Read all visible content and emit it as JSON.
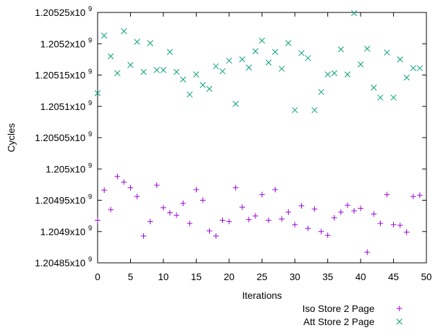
{
  "chart_data": {
    "type": "scatter",
    "title": "",
    "xlabel": "Iterations",
    "ylabel": "Cycles",
    "xlim": [
      0,
      50
    ],
    "ylim": [
      1204850000,
      1205250000
    ],
    "grid": false,
    "legend_position": "bottom-right",
    "x_ticks": [
      0,
      5,
      10,
      15,
      20,
      25,
      30,
      35,
      40,
      45,
      50
    ],
    "x_tick_labels": [
      "0",
      "5",
      "10",
      "15",
      "20",
      "25",
      "30",
      "35",
      "40",
      "45",
      "50"
    ],
    "y_ticks": [
      1204850000,
      1204900000,
      1204950000,
      1205000000,
      1205050000,
      1205100000,
      1205150000,
      1205200000,
      1205250000
    ],
    "y_tick_mantissas": [
      "1.20485x10",
      "1.2049x10",
      "1.20495x10",
      "1.205x10",
      "1.20505x10",
      "1.2051x10",
      "1.20515x10",
      "1.2052x10",
      "1.20525x10"
    ],
    "y_tick_exponent": "9",
    "series": [
      {
        "name": "Iso Store 2 Page",
        "marker": "plus",
        "color": "#9400d3",
        "x": [
          0,
          1,
          2,
          3,
          4,
          5,
          6,
          7,
          8,
          9,
          10,
          11,
          12,
          13,
          14,
          15,
          16,
          17,
          18,
          19,
          20,
          21,
          22,
          23,
          24,
          25,
          26,
          27,
          28,
          29,
          30,
          31,
          32,
          33,
          34,
          35,
          36,
          37,
          38,
          39,
          40,
          41,
          42,
          43,
          44,
          45,
          46,
          47,
          48,
          49
        ],
        "y": [
          1204918000,
          1204966000,
          1204935000,
          1204988000,
          1204979000,
          1204970000,
          1204956000,
          1204893000,
          1204916000,
          1204974000,
          1204938000,
          1204930000,
          1204926000,
          1204945000,
          1204913000,
          1204967000,
          1204950000,
          1204901000,
          1204893000,
          1204918000,
          1204916000,
          1204970000,
          1204939000,
          1204919000,
          1204925000,
          1204959000,
          1204918000,
          1204967000,
          1204920000,
          1204931000,
          1204911000,
          1204941000,
          1204905000,
          1204936000,
          1204900000,
          1204894000,
          1204922000,
          1204931000,
          1204942000,
          1204933000,
          1204937000,
          1204867000,
          1204928000,
          1204913000,
          1204959000,
          1204911000,
          1204910000,
          1204899000,
          1204956000,
          1204958000
        ]
      },
      {
        "name": "Att Store 2 Page",
        "marker": "cross",
        "color": "#009e73",
        "x": [
          0,
          1,
          2,
          3,
          4,
          5,
          6,
          7,
          8,
          9,
          10,
          11,
          12,
          13,
          14,
          15,
          16,
          17,
          18,
          19,
          20,
          21,
          22,
          23,
          24,
          25,
          26,
          27,
          28,
          29,
          30,
          31,
          32,
          33,
          34,
          35,
          36,
          37,
          38,
          39,
          40,
          41,
          42,
          43,
          44,
          45,
          46,
          47,
          48,
          49
        ],
        "y": [
          1205121000,
          1205213000,
          1205180000,
          1205153000,
          1205220000,
          1205166000,
          1205203000,
          1205155000,
          1205201000,
          1205158000,
          1205158000,
          1205187000,
          1205155000,
          1205143000,
          1205119000,
          1205151000,
          1205134000,
          1205128000,
          1205164000,
          1205156000,
          1205173000,
          1205104000,
          1205175000,
          1205162000,
          1205188000,
          1205205000,
          1205170000,
          1205187000,
          1205160000,
          1205201000,
          1205094000,
          1205185000,
          1205177000,
          1205094000,
          1205123000,
          1205151000,
          1205153000,
          1205191000,
          1205151000,
          1205249000,
          1205167000,
          1205192000,
          1205130000,
          1205114000,
          1205186000,
          1205114000,
          1205175000,
          1205146000,
          1205161000,
          1205161000
        ]
      }
    ]
  }
}
